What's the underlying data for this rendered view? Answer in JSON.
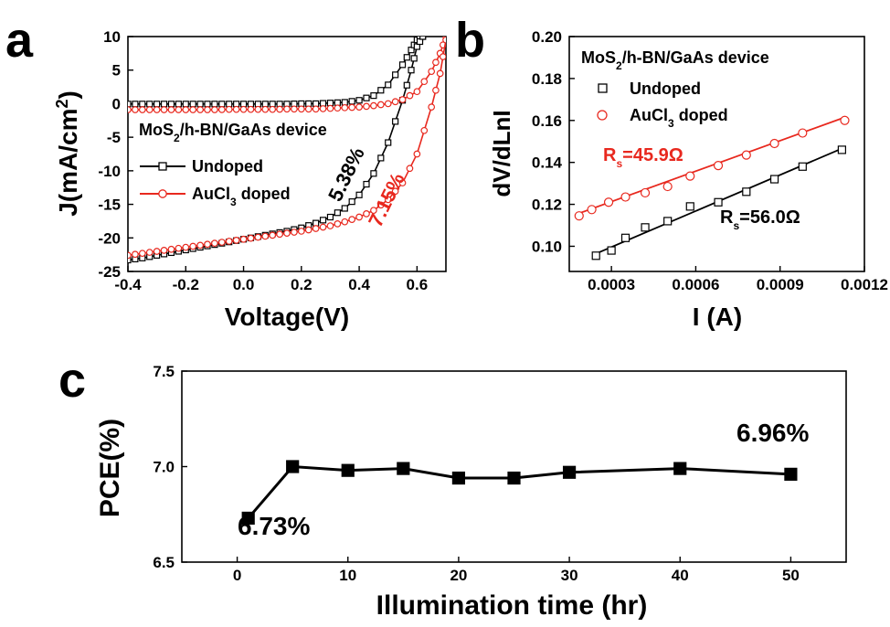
{
  "chart_data": [
    {
      "panel": "a",
      "type": "line",
      "xlabel": "Voltage(V)",
      "ylabel_main": "J(mA/cm",
      "ylabel_sup": "2",
      "ylabel_end": ")",
      "xlim": [
        -0.4,
        0.7
      ],
      "ylim": [
        -25,
        10
      ],
      "xticks": [
        "-0.4",
        "-0.2",
        "0.0",
        "0.2",
        "0.4",
        "0.6"
      ],
      "yticks": [
        "-25",
        "-20",
        "-15",
        "-10",
        "-5",
        "0",
        "5",
        "10"
      ],
      "legend_title": "MoS2/h-BN/GaAs device",
      "legend_title_parts": [
        "MoS",
        "2",
        "/h-BN/GaAs device"
      ],
      "series": [
        {
          "name": "Undoped",
          "color": "#000000",
          "marker": "square",
          "x": [
            -0.4,
            -0.35,
            -0.3,
            -0.25,
            -0.2,
            -0.15,
            -0.1,
            -0.05,
            0.0,
            0.05,
            0.1,
            0.15,
            0.2,
            0.25,
            0.3,
            0.35,
            0.4,
            0.45,
            0.5,
            0.55,
            0.58,
            0.6,
            0.62
          ],
          "dark": [
            -0.05,
            -0.05,
            -0.05,
            -0.05,
            -0.05,
            -0.05,
            -0.05,
            -0.05,
            -0.05,
            -0.05,
            -0.05,
            -0.05,
            0.0,
            0.0,
            0.1,
            0.2,
            0.5,
            1.2,
            2.8,
            5.8,
            8.0,
            9.5,
            10
          ],
          "light": [
            -23.3,
            -23.0,
            -22.6,
            -22.2,
            -21.8,
            -21.4,
            -21.0,
            -20.6,
            -20.2,
            -19.8,
            -19.4,
            -19.0,
            -18.5,
            -17.8,
            -16.9,
            -15.6,
            -13.6,
            -10.4,
            -5.8,
            0.5,
            5.0,
            8.5,
            10
          ],
          "pce": "5.38%"
        },
        {
          "name": "AuCl3 doped",
          "name_parts": [
            "AuCl",
            "3",
            " doped"
          ],
          "color": "#e8281e",
          "marker": "circle",
          "x": [
            -0.4,
            -0.35,
            -0.3,
            -0.25,
            -0.2,
            -0.15,
            -0.1,
            -0.05,
            0.0,
            0.05,
            0.1,
            0.15,
            0.2,
            0.25,
            0.3,
            0.35,
            0.4,
            0.45,
            0.5,
            0.55,
            0.6,
            0.65,
            0.68,
            0.7
          ],
          "dark": [
            -0.9,
            -0.9,
            -0.9,
            -0.9,
            -0.9,
            -0.9,
            -0.9,
            -0.85,
            -0.85,
            -0.85,
            -0.85,
            -0.8,
            -0.8,
            -0.8,
            -0.7,
            -0.6,
            -0.5,
            -0.3,
            0.0,
            0.6,
            1.8,
            4.8,
            7.5,
            10
          ],
          "light": [
            -22.6,
            -22.3,
            -22.0,
            -21.7,
            -21.4,
            -21.1,
            -20.8,
            -20.5,
            -20.2,
            -19.9,
            -19.6,
            -19.3,
            -19.0,
            -18.6,
            -18.2,
            -17.6,
            -16.9,
            -15.9,
            -14.3,
            -11.8,
            -7.5,
            -0.5,
            4.5,
            9.5
          ],
          "pce": "7.15%"
        }
      ]
    },
    {
      "panel": "b",
      "type": "scatter",
      "xlabel": "I (A)",
      "ylabel": "dV/dLnI",
      "xlim": [
        0.00015,
        0.0012
      ],
      "ylim": [
        0.088,
        0.2
      ],
      "xticks": [
        "0.0003",
        "0.0006",
        "0.0009",
        "0.0012"
      ],
      "yticks": [
        "0.10",
        "0.12",
        "0.14",
        "0.16",
        "0.18",
        "0.20"
      ],
      "legend_title_parts": [
        "MoS",
        "2",
        "/h-BN/GaAs device"
      ],
      "series": [
        {
          "name": "Undoped",
          "color": "#000000",
          "marker": "square",
          "x": [
            0.000245,
            0.0003,
            0.00035,
            0.00042,
            0.0005,
            0.00058,
            0.00068,
            0.00078,
            0.00088,
            0.00098,
            0.00112
          ],
          "y": [
            0.0955,
            0.098,
            0.104,
            0.109,
            0.112,
            0.119,
            0.121,
            0.126,
            0.132,
            0.138,
            0.146
          ],
          "fit": [
            [
              0.00024,
              0.0962
            ],
            [
              0.00113,
              0.1472
            ]
          ],
          "rs_parts": [
            "R",
            "s",
            "=56.0Ω"
          ]
        },
        {
          "name": "AuCl3 doped",
          "name_parts": [
            "AuCl",
            "3",
            " doped"
          ],
          "color": "#e8281e",
          "marker": "circle",
          "x": [
            0.000185,
            0.00023,
            0.00029,
            0.00035,
            0.00042,
            0.0005,
            0.00058,
            0.00068,
            0.00078,
            0.00088,
            0.00098,
            0.00113
          ],
          "y": [
            0.1145,
            0.1175,
            0.121,
            0.1235,
            0.1255,
            0.1285,
            0.1335,
            0.1385,
            0.1435,
            0.149,
            0.154,
            0.16
          ],
          "fit": [
            [
              0.00018,
              0.1155
            ],
            [
              0.00113,
              0.1615
            ]
          ],
          "rs_parts": [
            "R",
            "s",
            "=45.9Ω"
          ]
        }
      ]
    },
    {
      "panel": "c",
      "type": "line",
      "xlabel": "Illumination time (hr)",
      "ylabel": "PCE(%)",
      "xlim": [
        -5,
        55
      ],
      "ylim": [
        6.5,
        7.5
      ],
      "xticks": [
        "0",
        "10",
        "20",
        "30",
        "40",
        "50"
      ],
      "yticks": [
        "6.5",
        "7.0",
        "7.5"
      ],
      "series": [
        {
          "name": "",
          "color": "#000000",
          "marker": "square",
          "x": [
            1,
            5,
            10,
            15,
            20,
            25,
            30,
            40,
            50
          ],
          "y": [
            6.73,
            7.0,
            6.98,
            6.99,
            6.94,
            6.94,
            6.97,
            6.99,
            6.96
          ]
        }
      ],
      "annotations": [
        "6.73%",
        "6.96%"
      ]
    }
  ]
}
